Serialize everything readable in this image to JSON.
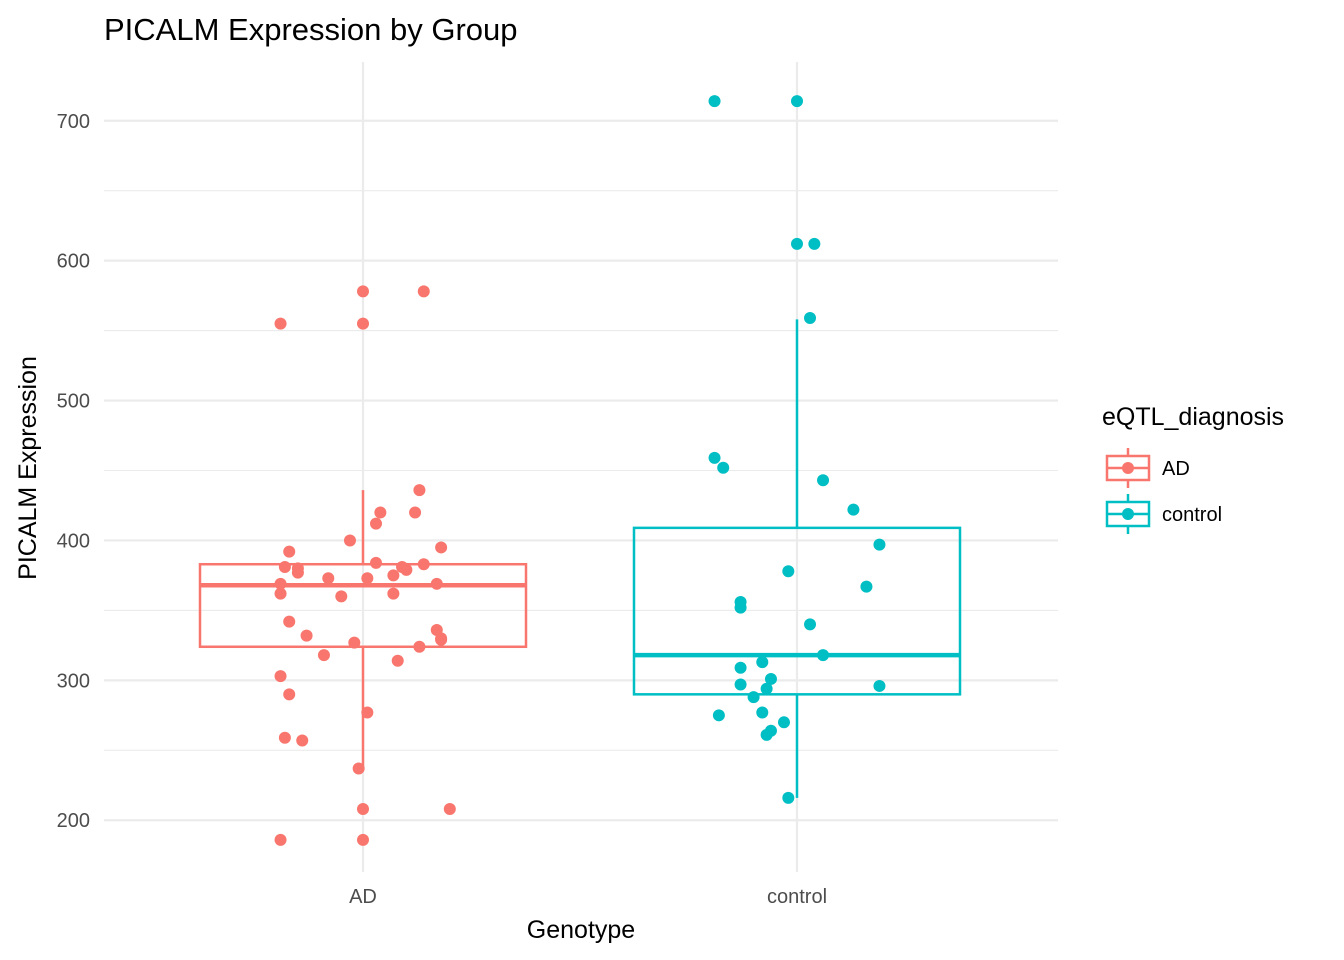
{
  "chart_data": {
    "type": "boxplot",
    "title": "PICALM Expression by Group",
    "xlabel": "Genotype",
    "ylabel": "PICALM Expression",
    "categories": [
      "AD",
      "control"
    ],
    "y_ticks": [
      200,
      300,
      400,
      500,
      600,
      700
    ],
    "ylim": [
      163,
      742
    ],
    "grid": true,
    "legend": {
      "title": "eQTL_diagnosis",
      "placement": "right",
      "entries": [
        "AD",
        "control"
      ]
    },
    "series": [
      {
        "name": "AD",
        "color": "#F8766D",
        "box": {
          "whisker_low": 237,
          "q1": 324,
          "median": 368,
          "q3": 383,
          "whisker_high": 436
        },
        "points": [
          {
            "jitter": -0.19,
            "y": 555
          },
          {
            "jitter": 0.0,
            "y": 578
          },
          {
            "jitter": 0.14,
            "y": 578
          },
          {
            "jitter": 0.0,
            "y": 555
          },
          {
            "jitter": 0.13,
            "y": 436
          },
          {
            "jitter": 0.04,
            "y": 420
          },
          {
            "jitter": 0.12,
            "y": 420
          },
          {
            "jitter": 0.03,
            "y": 412
          },
          {
            "jitter": -0.03,
            "y": 400
          },
          {
            "jitter": 0.18,
            "y": 395
          },
          {
            "jitter": -0.17,
            "y": 392
          },
          {
            "jitter": 0.03,
            "y": 384
          },
          {
            "jitter": 0.14,
            "y": 383
          },
          {
            "jitter": -0.18,
            "y": 381
          },
          {
            "jitter": -0.15,
            "y": 380
          },
          {
            "jitter": 0.09,
            "y": 381
          },
          {
            "jitter": 0.1,
            "y": 379
          },
          {
            "jitter": -0.15,
            "y": 377
          },
          {
            "jitter": 0.07,
            "y": 375
          },
          {
            "jitter": -0.08,
            "y": 373
          },
          {
            "jitter": 0.01,
            "y": 373
          },
          {
            "jitter": -0.19,
            "y": 369
          },
          {
            "jitter": 0.17,
            "y": 369
          },
          {
            "jitter": -0.19,
            "y": 362
          },
          {
            "jitter": 0.07,
            "y": 362
          },
          {
            "jitter": -0.05,
            "y": 360
          },
          {
            "jitter": -0.17,
            "y": 342
          },
          {
            "jitter": 0.17,
            "y": 336
          },
          {
            "jitter": -0.13,
            "y": 332
          },
          {
            "jitter": 0.18,
            "y": 330
          },
          {
            "jitter": 0.18,
            "y": 329
          },
          {
            "jitter": -0.02,
            "y": 327
          },
          {
            "jitter": 0.13,
            "y": 324
          },
          {
            "jitter": -0.09,
            "y": 318
          },
          {
            "jitter": 0.08,
            "y": 314
          },
          {
            "jitter": -0.19,
            "y": 303
          },
          {
            "jitter": -0.17,
            "y": 290
          },
          {
            "jitter": 0.01,
            "y": 277
          },
          {
            "jitter": -0.18,
            "y": 259
          },
          {
            "jitter": -0.14,
            "y": 257
          },
          {
            "jitter": -0.01,
            "y": 237
          },
          {
            "jitter": 0.0,
            "y": 208
          },
          {
            "jitter": 0.2,
            "y": 208
          },
          {
            "jitter": -0.19,
            "y": 186
          },
          {
            "jitter": 0.0,
            "y": 186
          }
        ]
      },
      {
        "name": "control",
        "color": "#00BFC4",
        "box": {
          "whisker_low": 216,
          "q1": 290,
          "median": 318,
          "q3": 409,
          "whisker_high": 558
        },
        "points": [
          {
            "jitter": -0.19,
            "y": 714
          },
          {
            "jitter": 0.0,
            "y": 714
          },
          {
            "jitter": 0.0,
            "y": 612
          },
          {
            "jitter": 0.04,
            "y": 612
          },
          {
            "jitter": 0.03,
            "y": 559
          },
          {
            "jitter": -0.19,
            "y": 459
          },
          {
            "jitter": -0.17,
            "y": 452
          },
          {
            "jitter": 0.06,
            "y": 443
          },
          {
            "jitter": 0.13,
            "y": 422
          },
          {
            "jitter": 0.19,
            "y": 397
          },
          {
            "jitter": -0.02,
            "y": 378
          },
          {
            "jitter": 0.16,
            "y": 367
          },
          {
            "jitter": -0.13,
            "y": 356
          },
          {
            "jitter": -0.13,
            "y": 352
          },
          {
            "jitter": 0.03,
            "y": 340
          },
          {
            "jitter": 0.06,
            "y": 318
          },
          {
            "jitter": -0.08,
            "y": 313
          },
          {
            "jitter": -0.13,
            "y": 309
          },
          {
            "jitter": -0.06,
            "y": 301
          },
          {
            "jitter": -0.13,
            "y": 297
          },
          {
            "jitter": 0.19,
            "y": 296
          },
          {
            "jitter": -0.07,
            "y": 294
          },
          {
            "jitter": -0.1,
            "y": 288
          },
          {
            "jitter": -0.08,
            "y": 277
          },
          {
            "jitter": -0.18,
            "y": 275
          },
          {
            "jitter": -0.03,
            "y": 270
          },
          {
            "jitter": -0.06,
            "y": 264
          },
          {
            "jitter": -0.07,
            "y": 261
          },
          {
            "jitter": -0.02,
            "y": 216
          }
        ]
      }
    ]
  }
}
